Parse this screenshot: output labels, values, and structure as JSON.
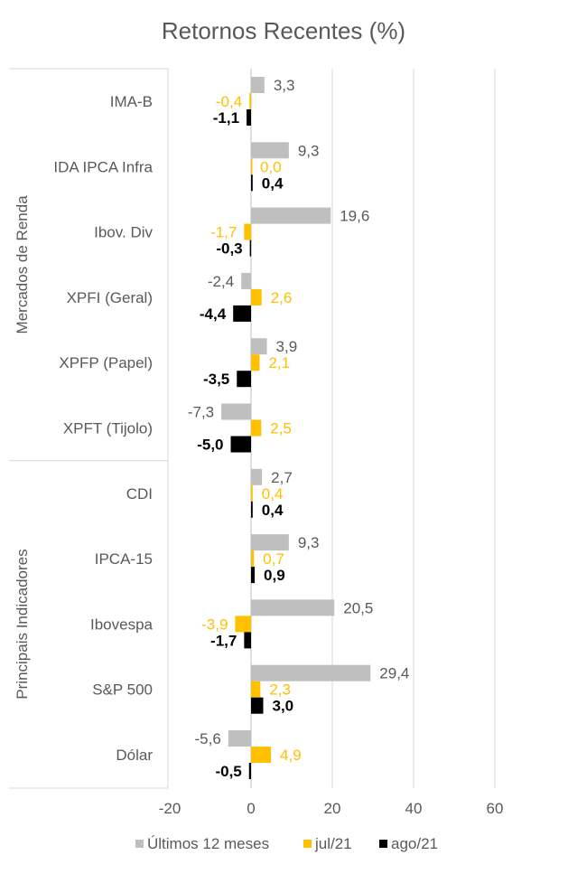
{
  "chart_data": {
    "type": "bar",
    "orientation": "horizontal",
    "title": "Retornos Recentes (%)",
    "groups": [
      {
        "label": "Mercados de Renda",
        "categories": [
          "IMA-B",
          "IDA IPCA Infra",
          "Ibov. Div",
          "XPFI (Geral)",
          "XPFP (Papel)",
          "XPFT (Tijolo)"
        ]
      },
      {
        "label": "Principais Indicadores",
        "categories": [
          "CDI",
          "IPCA-15",
          "Ibovespa",
          "S&P 500",
          "Dólar"
        ]
      }
    ],
    "categories": [
      "IMA-B",
      "IDA IPCA Infra",
      "Ibov. Div",
      "XPFI (Geral)",
      "XPFP (Papel)",
      "XPFT (Tijolo)",
      "CDI",
      "IPCA-15",
      "Ibovespa",
      "S&P 500",
      "Dólar"
    ],
    "series": [
      {
        "name": "Últimos 12 meses",
        "color": "#bfbfbf",
        "values": [
          3.3,
          9.3,
          19.6,
          -2.4,
          3.9,
          -7.3,
          2.7,
          9.3,
          20.5,
          29.4,
          -5.6
        ],
        "labels": [
          "3,3",
          "9,3",
          "19,6",
          "-2,4",
          "3,9",
          "-7,3",
          "2,7",
          "9,3",
          "20,5",
          "29,4",
          "-5,6"
        ]
      },
      {
        "name": "jul/21",
        "color": "#ffc000",
        "values": [
          -0.4,
          0.0,
          -1.7,
          2.6,
          2.1,
          2.5,
          0.4,
          0.7,
          -3.9,
          2.3,
          4.9
        ],
        "labels": [
          "-0,4",
          "0,0",
          "-1,7",
          "2,6",
          "2,1",
          "2,5",
          "0,4",
          "0,7",
          "-3,9",
          "2,3",
          "4,9"
        ]
      },
      {
        "name": "ago/21",
        "color": "#000000",
        "values": [
          -1.1,
          0.4,
          -0.3,
          -4.4,
          -3.5,
          -5.0,
          0.4,
          0.9,
          -1.7,
          3.0,
          -0.5
        ],
        "labels": [
          "-1,1",
          "0,4",
          "-0,3",
          "-4,4",
          "-3,5",
          "-5,0",
          "0,4",
          "0,9",
          "-1,7",
          "3,0",
          "-0,5"
        ]
      }
    ],
    "xlim": [
      -20,
      60
    ],
    "xticks": [
      -20,
      0,
      20,
      40,
      60
    ],
    "xtick_labels": [
      "-20",
      "0",
      "20",
      "40",
      "60"
    ],
    "grid": true,
    "legend_position": "bottom",
    "colors": {
      "gridline": "#d9d9d9",
      "axis_text": "#595959",
      "jul_label": "#ffc000"
    }
  }
}
